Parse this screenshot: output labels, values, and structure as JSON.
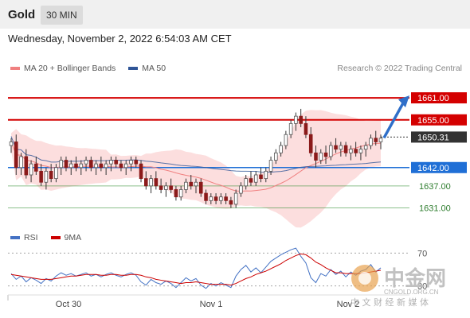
{
  "header": {
    "symbol": "Gold",
    "timeframe": "30 MIN"
  },
  "datetime": "Wednesday, November 2, 2022 6:54:03 AM CET",
  "legend": {
    "items": [
      {
        "label": "MA 20 + Bollinger Bands",
        "color": "#f08080"
      },
      {
        "label": "MA 50",
        "color": "#2f5597"
      }
    ],
    "copyright": "Research © 2022 Trading Central"
  },
  "rsi_legend": {
    "items": [
      {
        "label": "RSI",
        "color": "#4472c4"
      },
      {
        "label": "9MA",
        "color": "#cc0000"
      }
    ]
  },
  "watermark": {
    "brand": "中金网",
    "domain": "CNGOLD.ORG.CN",
    "tagline": "中 文 财 经 新 媒 体"
  },
  "chart_data": {
    "type": "candlestick",
    "price_range": [
      1627,
      1666
    ],
    "levels": [
      {
        "value": 1661.0,
        "label": "1661.00",
        "kind": "resistance",
        "color": "#d40000"
      },
      {
        "value": 1655.0,
        "label": "1655.00",
        "kind": "resistance",
        "color": "#d40000"
      },
      {
        "value": 1650.31,
        "label": "1650.31",
        "kind": "current",
        "color": "#333333"
      },
      {
        "value": 1642.0,
        "label": "1642.00",
        "kind": "pivot",
        "color": "#1f6fd6"
      },
      {
        "value": 1637.0,
        "label": "1637.00",
        "kind": "support",
        "color": "#2e8b2e"
      },
      {
        "value": 1631.0,
        "label": "1631.00",
        "kind": "support",
        "color": "#2e8b2e"
      }
    ],
    "forecast": {
      "from": 1650.31,
      "to": 1661.0
    },
    "x_ticks": [
      "Oct 30",
      "Nov 1",
      "Nov 2"
    ],
    "candles": [
      [
        1648,
        1650,
        1646,
        1649
      ],
      [
        1649,
        1651,
        1640,
        1642
      ],
      [
        1642,
        1646,
        1640,
        1645
      ],
      [
        1645,
        1647,
        1639,
        1640
      ],
      [
        1640,
        1644,
        1638,
        1643
      ],
      [
        1643,
        1645,
        1640,
        1641
      ],
      [
        1641,
        1643,
        1637,
        1638
      ],
      [
        1638,
        1642,
        1636,
        1641
      ],
      [
        1641,
        1643,
        1638,
        1639
      ],
      [
        1639,
        1643,
        1638,
        1642
      ],
      [
        1642,
        1645,
        1640,
        1644
      ],
      [
        1644,
        1645,
        1641,
        1642
      ],
      [
        1642,
        1644,
        1640,
        1643
      ],
      [
        1643,
        1645,
        1641,
        1642
      ],
      [
        1642,
        1644,
        1640,
        1643
      ],
      [
        1643,
        1645,
        1641,
        1644
      ],
      [
        1644,
        1645,
        1641,
        1642
      ],
      [
        1642,
        1644,
        1640,
        1643
      ],
      [
        1643,
        1645,
        1641,
        1642
      ],
      [
        1642,
        1644,
        1640,
        1643
      ],
      [
        1643,
        1645,
        1641,
        1644
      ],
      [
        1644,
        1645,
        1642,
        1643
      ],
      [
        1643,
        1644,
        1641,
        1642
      ],
      [
        1642,
        1644,
        1640,
        1643
      ],
      [
        1643,
        1645,
        1641,
        1644
      ],
      [
        1644,
        1645,
        1642,
        1643
      ],
      [
        1643,
        1644,
        1638,
        1639
      ],
      [
        1639,
        1641,
        1636,
        1637
      ],
      [
        1637,
        1640,
        1635,
        1639
      ],
      [
        1639,
        1641,
        1636,
        1637
      ],
      [
        1637,
        1639,
        1635,
        1636
      ],
      [
        1636,
        1638,
        1634,
        1637
      ],
      [
        1637,
        1639,
        1635,
        1636
      ],
      [
        1636,
        1637,
        1633,
        1634
      ],
      [
        1634,
        1637,
        1633,
        1636
      ],
      [
        1636,
        1639,
        1635,
        1638
      ],
      [
        1638,
        1640,
        1636,
        1637
      ],
      [
        1637,
        1639,
        1635,
        1638
      ],
      [
        1638,
        1639,
        1634,
        1635
      ],
      [
        1635,
        1636,
        1632,
        1633
      ],
      [
        1633,
        1635,
        1632,
        1634
      ],
      [
        1634,
        1635,
        1632,
        1633
      ],
      [
        1633,
        1635,
        1632,
        1634
      ],
      [
        1634,
        1635,
        1632,
        1633
      ],
      [
        1633,
        1634,
        1631,
        1632
      ],
      [
        1632,
        1636,
        1631,
        1635
      ],
      [
        1635,
        1638,
        1634,
        1637
      ],
      [
        1637,
        1640,
        1636,
        1639
      ],
      [
        1639,
        1641,
        1637,
        1638
      ],
      [
        1638,
        1641,
        1637,
        1640
      ],
      [
        1640,
        1642,
        1638,
        1639
      ],
      [
        1639,
        1642,
        1638,
        1641
      ],
      [
        1641,
        1645,
        1640,
        1644
      ],
      [
        1644,
        1647,
        1643,
        1646
      ],
      [
        1646,
        1649,
        1645,
        1648
      ],
      [
        1648,
        1652,
        1647,
        1651
      ],
      [
        1651,
        1655,
        1650,
        1654
      ],
      [
        1654,
        1657,
        1652,
        1656
      ],
      [
        1656,
        1658,
        1653,
        1654
      ],
      [
        1654,
        1656,
        1650,
        1651
      ],
      [
        1651,
        1653,
        1645,
        1646
      ],
      [
        1646,
        1648,
        1642,
        1644
      ],
      [
        1644,
        1647,
        1643,
        1646
      ],
      [
        1646,
        1648,
        1643,
        1645
      ],
      [
        1645,
        1649,
        1644,
        1648
      ],
      [
        1648,
        1650,
        1646,
        1647
      ],
      [
        1647,
        1649,
        1645,
        1648
      ],
      [
        1648,
        1649,
        1645,
        1646
      ],
      [
        1646,
        1648,
        1644,
        1647
      ],
      [
        1647,
        1649,
        1645,
        1646
      ],
      [
        1646,
        1648,
        1644,
        1647
      ],
      [
        1647,
        1649,
        1645,
        1648
      ],
      [
        1648,
        1651,
        1647,
        1650
      ],
      [
        1650,
        1652,
        1648,
        1649
      ],
      [
        1649,
        1651,
        1647,
        1650
      ]
    ],
    "rsi": {
      "ylabels": [
        "70",
        "30"
      ],
      "rsi_values": [
        45,
        38,
        42,
        35,
        40,
        37,
        33,
        39,
        36,
        42,
        46,
        43,
        45,
        42,
        44,
        46,
        42,
        44,
        41,
        44,
        46,
        43,
        41,
        44,
        46,
        43,
        35,
        31,
        38,
        34,
        32,
        36,
        33,
        28,
        34,
        40,
        36,
        39,
        31,
        27,
        33,
        30,
        34,
        31,
        28,
        42,
        50,
        55,
        47,
        52,
        46,
        53,
        60,
        64,
        68,
        71,
        74,
        76,
        66,
        58,
        40,
        34,
        45,
        42,
        50,
        44,
        48,
        41,
        47,
        43,
        48,
        50,
        56,
        47,
        52
      ],
      "ma9_values": [
        44,
        43,
        42,
        41,
        40,
        39,
        38,
        38,
        38,
        39,
        40,
        41,
        42,
        42,
        43,
        44,
        44,
        44,
        43,
        43,
        44,
        44,
        43,
        43,
        44,
        44,
        43,
        41,
        40,
        38,
        37,
        36,
        35,
        34,
        33,
        34,
        34,
        35,
        34,
        33,
        32,
        32,
        32,
        32,
        31,
        33,
        36,
        39,
        41,
        44,
        46,
        48,
        51,
        54,
        57,
        61,
        64,
        67,
        69,
        68,
        64,
        59,
        56,
        52,
        49,
        46,
        46,
        45,
        45,
        45,
        45,
        46,
        47,
        48,
        49
      ]
    }
  }
}
